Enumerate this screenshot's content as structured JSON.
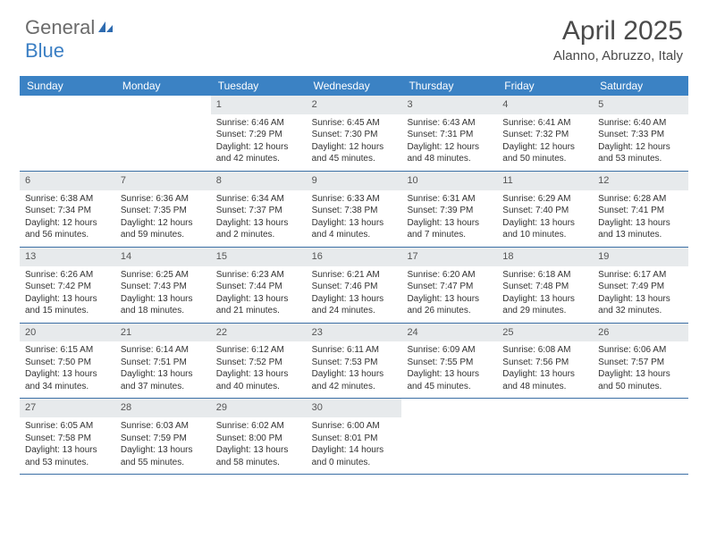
{
  "brand": {
    "part1": "General",
    "part2": "Blue"
  },
  "title": "April 2025",
  "location": "Alanno, Abruzzo, Italy",
  "colors": {
    "header_bar": "#3b82c4",
    "daynum_bg": "#e7eaec",
    "week_border": "#3b6fa5",
    "text": "#333333",
    "title_text": "#4a4a4a"
  },
  "weekdays": [
    "Sunday",
    "Monday",
    "Tuesday",
    "Wednesday",
    "Thursday",
    "Friday",
    "Saturday"
  ],
  "weeks": [
    [
      {
        "day": "",
        "sunrise": "",
        "sunset": "",
        "daylight": ""
      },
      {
        "day": "",
        "sunrise": "",
        "sunset": "",
        "daylight": ""
      },
      {
        "day": "1",
        "sunrise": "Sunrise: 6:46 AM",
        "sunset": "Sunset: 7:29 PM",
        "daylight": "Daylight: 12 hours and 42 minutes."
      },
      {
        "day": "2",
        "sunrise": "Sunrise: 6:45 AM",
        "sunset": "Sunset: 7:30 PM",
        "daylight": "Daylight: 12 hours and 45 minutes."
      },
      {
        "day": "3",
        "sunrise": "Sunrise: 6:43 AM",
        "sunset": "Sunset: 7:31 PM",
        "daylight": "Daylight: 12 hours and 48 minutes."
      },
      {
        "day": "4",
        "sunrise": "Sunrise: 6:41 AM",
        "sunset": "Sunset: 7:32 PM",
        "daylight": "Daylight: 12 hours and 50 minutes."
      },
      {
        "day": "5",
        "sunrise": "Sunrise: 6:40 AM",
        "sunset": "Sunset: 7:33 PM",
        "daylight": "Daylight: 12 hours and 53 minutes."
      }
    ],
    [
      {
        "day": "6",
        "sunrise": "Sunrise: 6:38 AM",
        "sunset": "Sunset: 7:34 PM",
        "daylight": "Daylight: 12 hours and 56 minutes."
      },
      {
        "day": "7",
        "sunrise": "Sunrise: 6:36 AM",
        "sunset": "Sunset: 7:35 PM",
        "daylight": "Daylight: 12 hours and 59 minutes."
      },
      {
        "day": "8",
        "sunrise": "Sunrise: 6:34 AM",
        "sunset": "Sunset: 7:37 PM",
        "daylight": "Daylight: 13 hours and 2 minutes."
      },
      {
        "day": "9",
        "sunrise": "Sunrise: 6:33 AM",
        "sunset": "Sunset: 7:38 PM",
        "daylight": "Daylight: 13 hours and 4 minutes."
      },
      {
        "day": "10",
        "sunrise": "Sunrise: 6:31 AM",
        "sunset": "Sunset: 7:39 PM",
        "daylight": "Daylight: 13 hours and 7 minutes."
      },
      {
        "day": "11",
        "sunrise": "Sunrise: 6:29 AM",
        "sunset": "Sunset: 7:40 PM",
        "daylight": "Daylight: 13 hours and 10 minutes."
      },
      {
        "day": "12",
        "sunrise": "Sunrise: 6:28 AM",
        "sunset": "Sunset: 7:41 PM",
        "daylight": "Daylight: 13 hours and 13 minutes."
      }
    ],
    [
      {
        "day": "13",
        "sunrise": "Sunrise: 6:26 AM",
        "sunset": "Sunset: 7:42 PM",
        "daylight": "Daylight: 13 hours and 15 minutes."
      },
      {
        "day": "14",
        "sunrise": "Sunrise: 6:25 AM",
        "sunset": "Sunset: 7:43 PM",
        "daylight": "Daylight: 13 hours and 18 minutes."
      },
      {
        "day": "15",
        "sunrise": "Sunrise: 6:23 AM",
        "sunset": "Sunset: 7:44 PM",
        "daylight": "Daylight: 13 hours and 21 minutes."
      },
      {
        "day": "16",
        "sunrise": "Sunrise: 6:21 AM",
        "sunset": "Sunset: 7:46 PM",
        "daylight": "Daylight: 13 hours and 24 minutes."
      },
      {
        "day": "17",
        "sunrise": "Sunrise: 6:20 AM",
        "sunset": "Sunset: 7:47 PM",
        "daylight": "Daylight: 13 hours and 26 minutes."
      },
      {
        "day": "18",
        "sunrise": "Sunrise: 6:18 AM",
        "sunset": "Sunset: 7:48 PM",
        "daylight": "Daylight: 13 hours and 29 minutes."
      },
      {
        "day": "19",
        "sunrise": "Sunrise: 6:17 AM",
        "sunset": "Sunset: 7:49 PM",
        "daylight": "Daylight: 13 hours and 32 minutes."
      }
    ],
    [
      {
        "day": "20",
        "sunrise": "Sunrise: 6:15 AM",
        "sunset": "Sunset: 7:50 PM",
        "daylight": "Daylight: 13 hours and 34 minutes."
      },
      {
        "day": "21",
        "sunrise": "Sunrise: 6:14 AM",
        "sunset": "Sunset: 7:51 PM",
        "daylight": "Daylight: 13 hours and 37 minutes."
      },
      {
        "day": "22",
        "sunrise": "Sunrise: 6:12 AM",
        "sunset": "Sunset: 7:52 PM",
        "daylight": "Daylight: 13 hours and 40 minutes."
      },
      {
        "day": "23",
        "sunrise": "Sunrise: 6:11 AM",
        "sunset": "Sunset: 7:53 PM",
        "daylight": "Daylight: 13 hours and 42 minutes."
      },
      {
        "day": "24",
        "sunrise": "Sunrise: 6:09 AM",
        "sunset": "Sunset: 7:55 PM",
        "daylight": "Daylight: 13 hours and 45 minutes."
      },
      {
        "day": "25",
        "sunrise": "Sunrise: 6:08 AM",
        "sunset": "Sunset: 7:56 PM",
        "daylight": "Daylight: 13 hours and 48 minutes."
      },
      {
        "day": "26",
        "sunrise": "Sunrise: 6:06 AM",
        "sunset": "Sunset: 7:57 PM",
        "daylight": "Daylight: 13 hours and 50 minutes."
      }
    ],
    [
      {
        "day": "27",
        "sunrise": "Sunrise: 6:05 AM",
        "sunset": "Sunset: 7:58 PM",
        "daylight": "Daylight: 13 hours and 53 minutes."
      },
      {
        "day": "28",
        "sunrise": "Sunrise: 6:03 AM",
        "sunset": "Sunset: 7:59 PM",
        "daylight": "Daylight: 13 hours and 55 minutes."
      },
      {
        "day": "29",
        "sunrise": "Sunrise: 6:02 AM",
        "sunset": "Sunset: 8:00 PM",
        "daylight": "Daylight: 13 hours and 58 minutes."
      },
      {
        "day": "30",
        "sunrise": "Sunrise: 6:00 AM",
        "sunset": "Sunset: 8:01 PM",
        "daylight": "Daylight: 14 hours and 0 minutes."
      },
      {
        "day": "",
        "sunrise": "",
        "sunset": "",
        "daylight": ""
      },
      {
        "day": "",
        "sunrise": "",
        "sunset": "",
        "daylight": ""
      },
      {
        "day": "",
        "sunrise": "",
        "sunset": "",
        "daylight": ""
      }
    ]
  ]
}
